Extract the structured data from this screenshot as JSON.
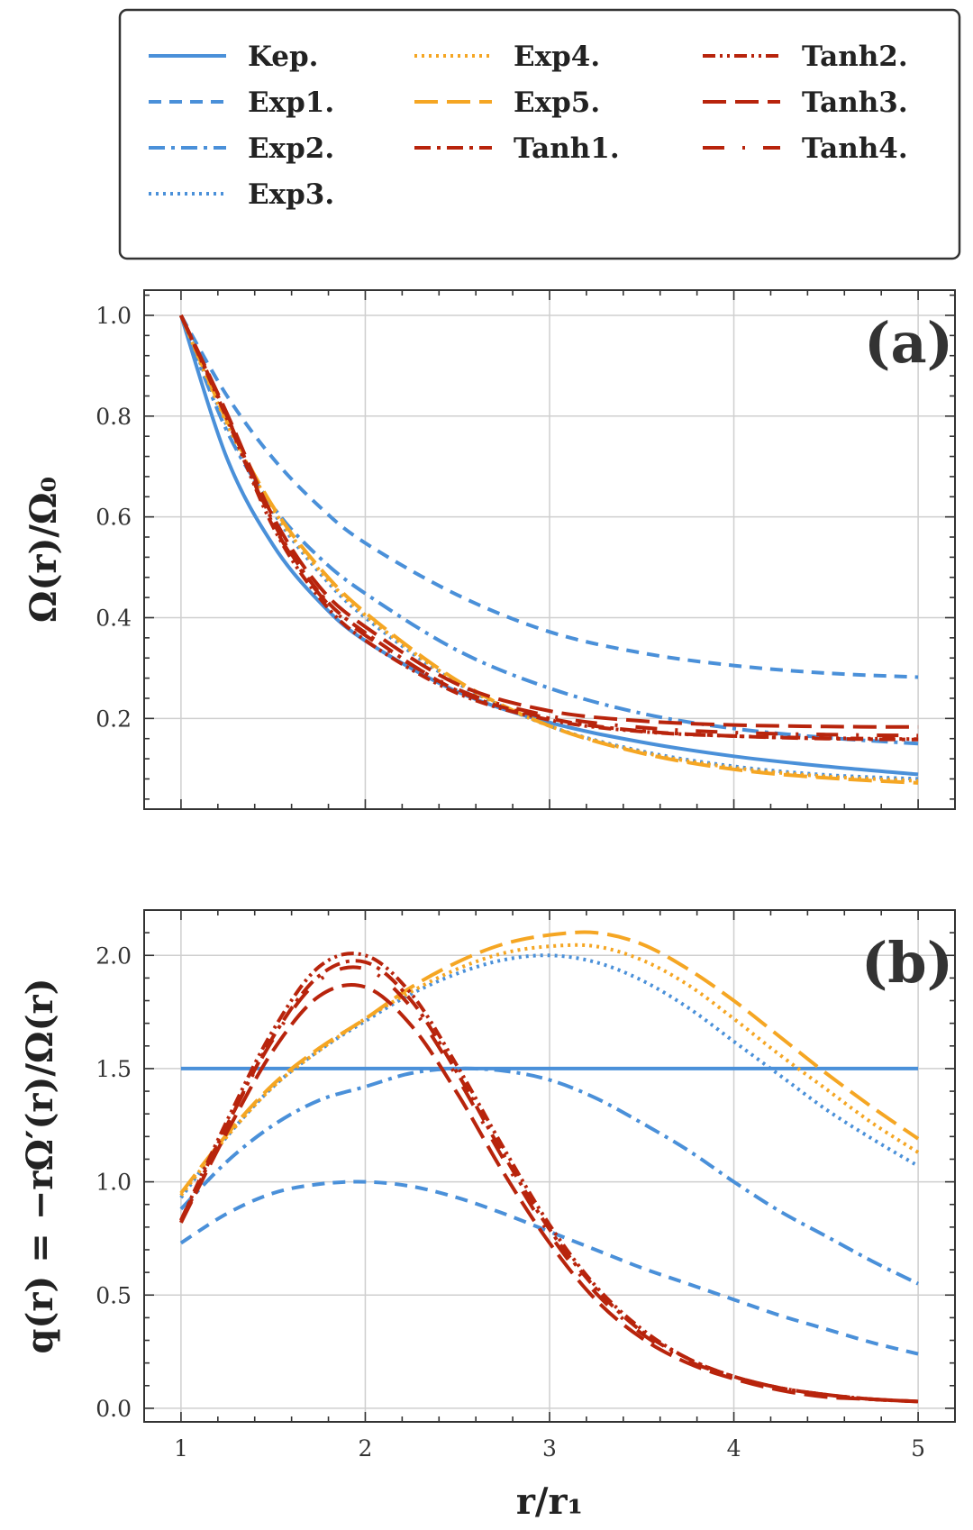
{
  "colors": {
    "blue": "#4a90d9",
    "orange": "#f5a623",
    "red": "#b8240c"
  },
  "legend": [
    {
      "label": "Kep.",
      "color": "blue",
      "dash": "solid"
    },
    {
      "label": "Exp1.",
      "color": "blue",
      "dash": "dashed"
    },
    {
      "label": "Exp2.",
      "color": "blue",
      "dash": "dashdot"
    },
    {
      "label": "Exp3.",
      "color": "blue",
      "dash": "dotted"
    },
    {
      "label": "Exp4.",
      "color": "orange",
      "dash": "dotted"
    },
    {
      "label": "Exp5.",
      "color": "orange",
      "dash": "longdash"
    },
    {
      "label": "Tanh1.",
      "color": "red",
      "dash": "dashdot"
    },
    {
      "label": "Tanh2.",
      "color": "red",
      "dash": "dashdotdot"
    },
    {
      "label": "Tanh3.",
      "color": "red",
      "dash": "longdash"
    },
    {
      "label": "Tanh4.",
      "color": "red",
      "dash": "sparsedash"
    }
  ],
  "chart_data": [
    {
      "type": "line",
      "panel_label": "(a)",
      "ylabel": "Ω(r)/Ω₀",
      "xlabel": "",
      "xlim": [
        0.8,
        5.2
      ],
      "ylim": [
        0.02,
        1.05
      ],
      "xticks": [
        1,
        2,
        3,
        4,
        5
      ],
      "xtick_labels": [],
      "yticks": [
        0.2,
        0.4,
        0.6,
        0.8,
        1.0
      ],
      "ytick_labels": [
        "0.2",
        "0.4",
        "0.6",
        "0.8",
        "1.0"
      ],
      "grid": true,
      "x": [
        1.0,
        1.25,
        1.5,
        1.75,
        2.0,
        2.5,
        3.0,
        3.5,
        4.0,
        4.5,
        5.0
      ],
      "series": [
        {
          "name": "Kep.",
          "values": [
            1.0,
            0.716,
            0.544,
            0.432,
            0.354,
            0.253,
            0.192,
            0.153,
            0.125,
            0.105,
            0.089
          ]
        },
        {
          "name": "Exp1.",
          "values": [
            1.0,
            0.84,
            0.716,
            0.621,
            0.548,
            0.445,
            0.372,
            0.33,
            0.305,
            0.29,
            0.282
          ]
        },
        {
          "name": "Exp2.",
          "values": [
            1.0,
            0.77,
            0.62,
            0.52,
            0.448,
            0.335,
            0.26,
            0.21,
            0.18,
            0.162,
            0.15
          ]
        },
        {
          "name": "Exp3.",
          "values": [
            1.0,
            0.78,
            0.61,
            0.49,
            0.4,
            0.27,
            0.185,
            0.135,
            0.105,
            0.088,
            0.08
          ]
        },
        {
          "name": "Exp4.",
          "values": [
            1.0,
            0.785,
            0.615,
            0.495,
            0.405,
            0.272,
            0.185,
            0.133,
            0.102,
            0.085,
            0.076
          ]
        },
        {
          "name": "Exp5.",
          "values": [
            1.0,
            0.79,
            0.62,
            0.5,
            0.41,
            0.275,
            0.185,
            0.131,
            0.099,
            0.082,
            0.072
          ]
        },
        {
          "name": "Tanh1.",
          "values": [
            1.0,
            0.8,
            0.59,
            0.45,
            0.37,
            0.255,
            0.2,
            0.175,
            0.165,
            0.16,
            0.158
          ]
        },
        {
          "name": "Tanh2.",
          "values": [
            1.0,
            0.795,
            0.58,
            0.44,
            0.355,
            0.25,
            0.197,
            0.174,
            0.165,
            0.161,
            0.159
          ]
        },
        {
          "name": "Tanh3.",
          "values": [
            1.0,
            0.805,
            0.6,
            0.462,
            0.382,
            0.268,
            0.215,
            0.195,
            0.187,
            0.184,
            0.183
          ]
        },
        {
          "name": "Tanh4.",
          "values": [
            1.0,
            0.8,
            0.585,
            0.447,
            0.365,
            0.258,
            0.205,
            0.182,
            0.172,
            0.168,
            0.166
          ]
        }
      ]
    },
    {
      "type": "line",
      "panel_label": "(b)",
      "ylabel": "q(r) = −rΩ′(r)/Ω(r)",
      "xlabel": "r/r₁",
      "xlim": [
        0.8,
        5.2
      ],
      "ylim": [
        -0.06,
        2.2
      ],
      "xticks": [
        1,
        2,
        3,
        4,
        5
      ],
      "xtick_labels": [
        "1",
        "2",
        "3",
        "4",
        "5"
      ],
      "yticks": [
        0.0,
        0.5,
        1.0,
        1.5,
        2.0
      ],
      "ytick_labels": [
        "0.0",
        "0.5",
        "1.0",
        "1.5",
        "2.0"
      ],
      "grid": true,
      "x": [
        1.0,
        1.25,
        1.5,
        1.75,
        2.0,
        2.25,
        2.5,
        2.75,
        3.0,
        3.25,
        3.5,
        3.75,
        4.0,
        4.25,
        4.5,
        4.75,
        5.0
      ],
      "series": [
        {
          "name": "Kep.",
          "values": [
            1.5,
            1.5,
            1.5,
            1.5,
            1.5,
            1.5,
            1.5,
            1.5,
            1.5,
            1.5,
            1.5,
            1.5,
            1.5,
            1.5,
            1.5,
            1.5,
            1.5
          ]
        },
        {
          "name": "Exp1.",
          "values": [
            0.73,
            0.86,
            0.95,
            0.99,
            1.0,
            0.98,
            0.93,
            0.86,
            0.78,
            0.7,
            0.62,
            0.55,
            0.48,
            0.41,
            0.35,
            0.29,
            0.24
          ]
        },
        {
          "name": "Exp2.",
          "values": [
            0.88,
            1.09,
            1.25,
            1.36,
            1.42,
            1.48,
            1.5,
            1.49,
            1.45,
            1.37,
            1.26,
            1.14,
            1.0,
            0.87,
            0.76,
            0.65,
            0.55
          ]
        },
        {
          "name": "Exp3.",
          "values": [
            0.93,
            1.2,
            1.42,
            1.58,
            1.71,
            1.83,
            1.92,
            1.98,
            2.0,
            1.97,
            1.89,
            1.77,
            1.62,
            1.47,
            1.32,
            1.19,
            1.07
          ]
        },
        {
          "name": "Exp4.",
          "values": [
            0.94,
            1.2,
            1.42,
            1.58,
            1.72,
            1.84,
            1.94,
            2.01,
            2.04,
            2.04,
            1.98,
            1.87,
            1.72,
            1.56,
            1.41,
            1.26,
            1.13
          ]
        },
        {
          "name": "Exp5.",
          "values": [
            0.95,
            1.21,
            1.43,
            1.59,
            1.72,
            1.86,
            1.97,
            2.05,
            2.09,
            2.1,
            2.05,
            1.94,
            1.8,
            1.64,
            1.48,
            1.33,
            1.19
          ]
        },
        {
          "name": "Tanh1.",
          "values": [
            0.82,
            1.25,
            1.64,
            1.91,
            1.97,
            1.8,
            1.48,
            1.12,
            0.79,
            0.53,
            0.34,
            0.22,
            0.14,
            0.09,
            0.06,
            0.04,
            0.03
          ]
        },
        {
          "name": "Tanh2.",
          "values": [
            0.83,
            1.27,
            1.67,
            1.95,
            2.0,
            1.83,
            1.51,
            1.15,
            0.81,
            0.54,
            0.35,
            0.22,
            0.14,
            0.09,
            0.06,
            0.04,
            0.03
          ]
        },
        {
          "name": "Tanh3.",
          "values": [
            0.82,
            1.22,
            1.58,
            1.82,
            1.86,
            1.69,
            1.39,
            1.04,
            0.73,
            0.48,
            0.31,
            0.2,
            0.13,
            0.08,
            0.05,
            0.04,
            0.03
          ]
        },
        {
          "name": "Tanh4.",
          "values": [
            0.83,
            1.25,
            1.63,
            1.89,
            1.94,
            1.77,
            1.46,
            1.1,
            0.77,
            0.51,
            0.33,
            0.21,
            0.14,
            0.09,
            0.06,
            0.04,
            0.03
          ]
        }
      ]
    }
  ]
}
